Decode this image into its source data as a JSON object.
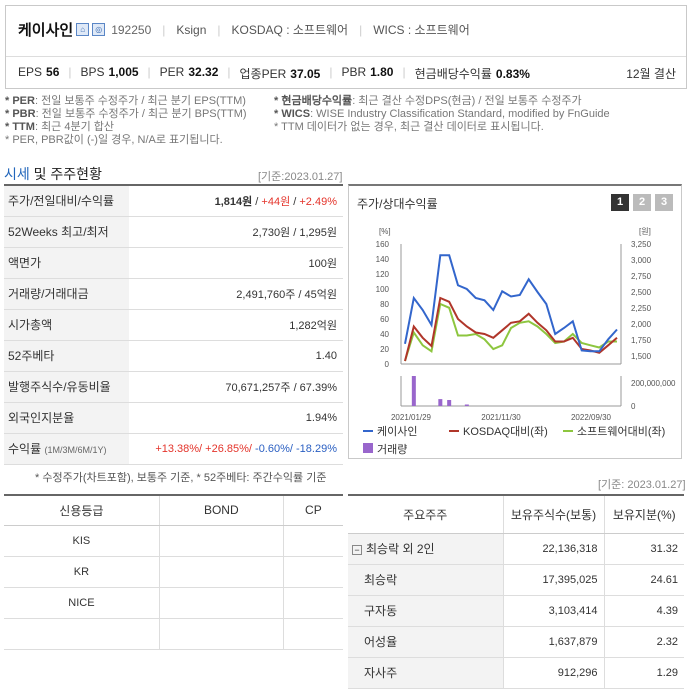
{
  "company": {
    "name": "케이사인",
    "code": "192250",
    "eng": "Ksign",
    "market": "KOSDAQ : 소프트웨어",
    "wics": "WICS : 소프트웨어"
  },
  "metrics": [
    {
      "k": "EPS",
      "v": "56"
    },
    {
      "k": "BPS",
      "v": "1,005"
    },
    {
      "k": "PER",
      "v": "32.32"
    },
    {
      "k": "업종PER",
      "v": "37.05"
    },
    {
      "k": "PBR",
      "v": "1.80"
    },
    {
      "k": "현금배당수익률",
      "v": "0.83%"
    }
  ],
  "settlement": "12월 결산",
  "notes_left": [
    {
      "k": "* PER",
      "t": ": 전일 보통주 수정주가 / 최근 분기 EPS(TTM)"
    },
    {
      "k": "* PBR",
      "t": ": 전일 보통주 수정주가 / 최근 분기 BPS(TTM)"
    },
    {
      "k": "* TTM",
      "t": ": 최근 4분기 합산"
    },
    {
      "k": "",
      "t": "* PER, PBR값이 (-)일 경우, N/A로 표기됩니다."
    }
  ],
  "notes_right": [
    {
      "k": "* 현금배당수익률",
      "t": ": 최근 결산 수정DPS(현금) / 전일 보통주 수정주가"
    },
    {
      "k": "* WICS",
      "t": ": WISE Industry Classification Standard, modified by FnGuide"
    },
    {
      "k": "",
      "t": "* TTM 데이터가 없는 경우, 최근 결산 데이터로 표시됩니다."
    }
  ],
  "section": {
    "title_blue": "시세",
    "title_rest": " 및 주주현황",
    "date1": "[기준:2023.01.27]",
    "date2": "[기준: 2023.01.27]"
  },
  "info": {
    "price_label": "주가/전일대비/수익률",
    "price": "1,814원",
    "change": "+44원",
    "rate": "+2.49%",
    "rows": [
      {
        "k": "52Weeks 최고/최저",
        "v": "2,730원 / 1,295원"
      },
      {
        "k": "액면가",
        "v": "100원"
      },
      {
        "k": "거래량/거래대금",
        "v": "2,491,760주 / 45억원"
      },
      {
        "k": "시가총액",
        "v": "1,282억원"
      },
      {
        "k": "52주베타",
        "v": "1.40"
      },
      {
        "k": "발행주식수/유동비율",
        "v": "70,671,257주 / 67.39%"
      },
      {
        "k": "외국인지분율",
        "v": "1.94%"
      }
    ],
    "ret_label": "수익률",
    "ret_sub": "(1M/3M/6M/1Y)",
    "ret": [
      "+13.38%/",
      "+26.85%/",
      "-0.60%/",
      "-18.29%"
    ],
    "footnote": "* 수정주가(차트포함), 보통주 기준, * 52주베타: 주간수익률 기준"
  },
  "chart_data": {
    "type": "line",
    "title": "주가/상대수익률",
    "pages": [
      "1",
      "2",
      "3"
    ],
    "x_ticks": [
      "2021/01/29",
      "2021/11/30",
      "2022/09/30"
    ],
    "y_left_unit": "[%]",
    "y_right_unit": "[원]",
    "y_left_ticks": [
      "160",
      "140",
      "120",
      "100",
      "80",
      "60",
      "40",
      "20",
      "0"
    ],
    "y_right_ticks": [
      "3,250",
      "3,000",
      "2,750",
      "2,500",
      "2,250",
      "2,000",
      "1,750",
      "1,500"
    ],
    "vol_ticks": [
      "200,000,000",
      "0"
    ],
    "ylim": [
      0,
      160
    ],
    "series": [
      {
        "name": "케이사인",
        "color": "#3366cc",
        "values": [
          27,
          88,
          72,
          52,
          145,
          145,
          105,
          100,
          88,
          85,
          72,
          97,
          90,
          92,
          113,
          96,
          80,
          40,
          48,
          57,
          18,
          17,
          17,
          33,
          46
        ]
      },
      {
        "name": "KOSDAQ대비(좌)",
        "color": "#b0362a",
        "values": [
          4,
          50,
          35,
          24,
          88,
          83,
          60,
          50,
          42,
          40,
          35,
          45,
          55,
          57,
          67,
          55,
          45,
          30,
          30,
          35,
          20,
          18,
          15,
          25,
          35
        ]
      },
      {
        "name": "소프트웨어대비(좌)",
        "color": "#8dc63f",
        "values": [
          4,
          42,
          25,
          17,
          80,
          75,
          38,
          38,
          40,
          33,
          20,
          25,
          48,
          55,
          57,
          50,
          40,
          28,
          30,
          40,
          28,
          25,
          22,
          30,
          30
        ]
      }
    ],
    "volume": {
      "name": "거래량",
      "color": "#9966cc",
      "values": [
        0,
        1,
        0,
        0,
        0.23,
        0.2,
        0,
        0.05,
        0,
        0,
        0,
        0,
        0,
        0,
        0,
        0,
        0,
        0,
        0,
        0,
        0,
        0,
        0,
        0,
        0
      ]
    }
  },
  "credit": {
    "headers": [
      "신용등급",
      "BOND",
      "CP"
    ],
    "rows": [
      [
        "KIS",
        "",
        ""
      ],
      [
        "KR",
        "",
        ""
      ],
      [
        "NICE",
        "",
        ""
      ],
      [
        "",
        "",
        ""
      ]
    ]
  },
  "holders": {
    "headers": [
      "주요주주",
      "보유주식수(보통)",
      "보유지분(%)"
    ],
    "rows": [
      {
        "name": "최승락 외 2인",
        "shares": "22,136,318",
        "pct": "31.32",
        "group": true
      },
      {
        "name": "최승락",
        "shares": "17,395,025",
        "pct": "24.61"
      },
      {
        "name": "구자동",
        "shares": "3,103,414",
        "pct": "4.39"
      },
      {
        "name": "어성율",
        "shares": "1,637,879",
        "pct": "2.32"
      },
      {
        "name": "자사주",
        "shares": "912,296",
        "pct": "1.29"
      }
    ]
  }
}
